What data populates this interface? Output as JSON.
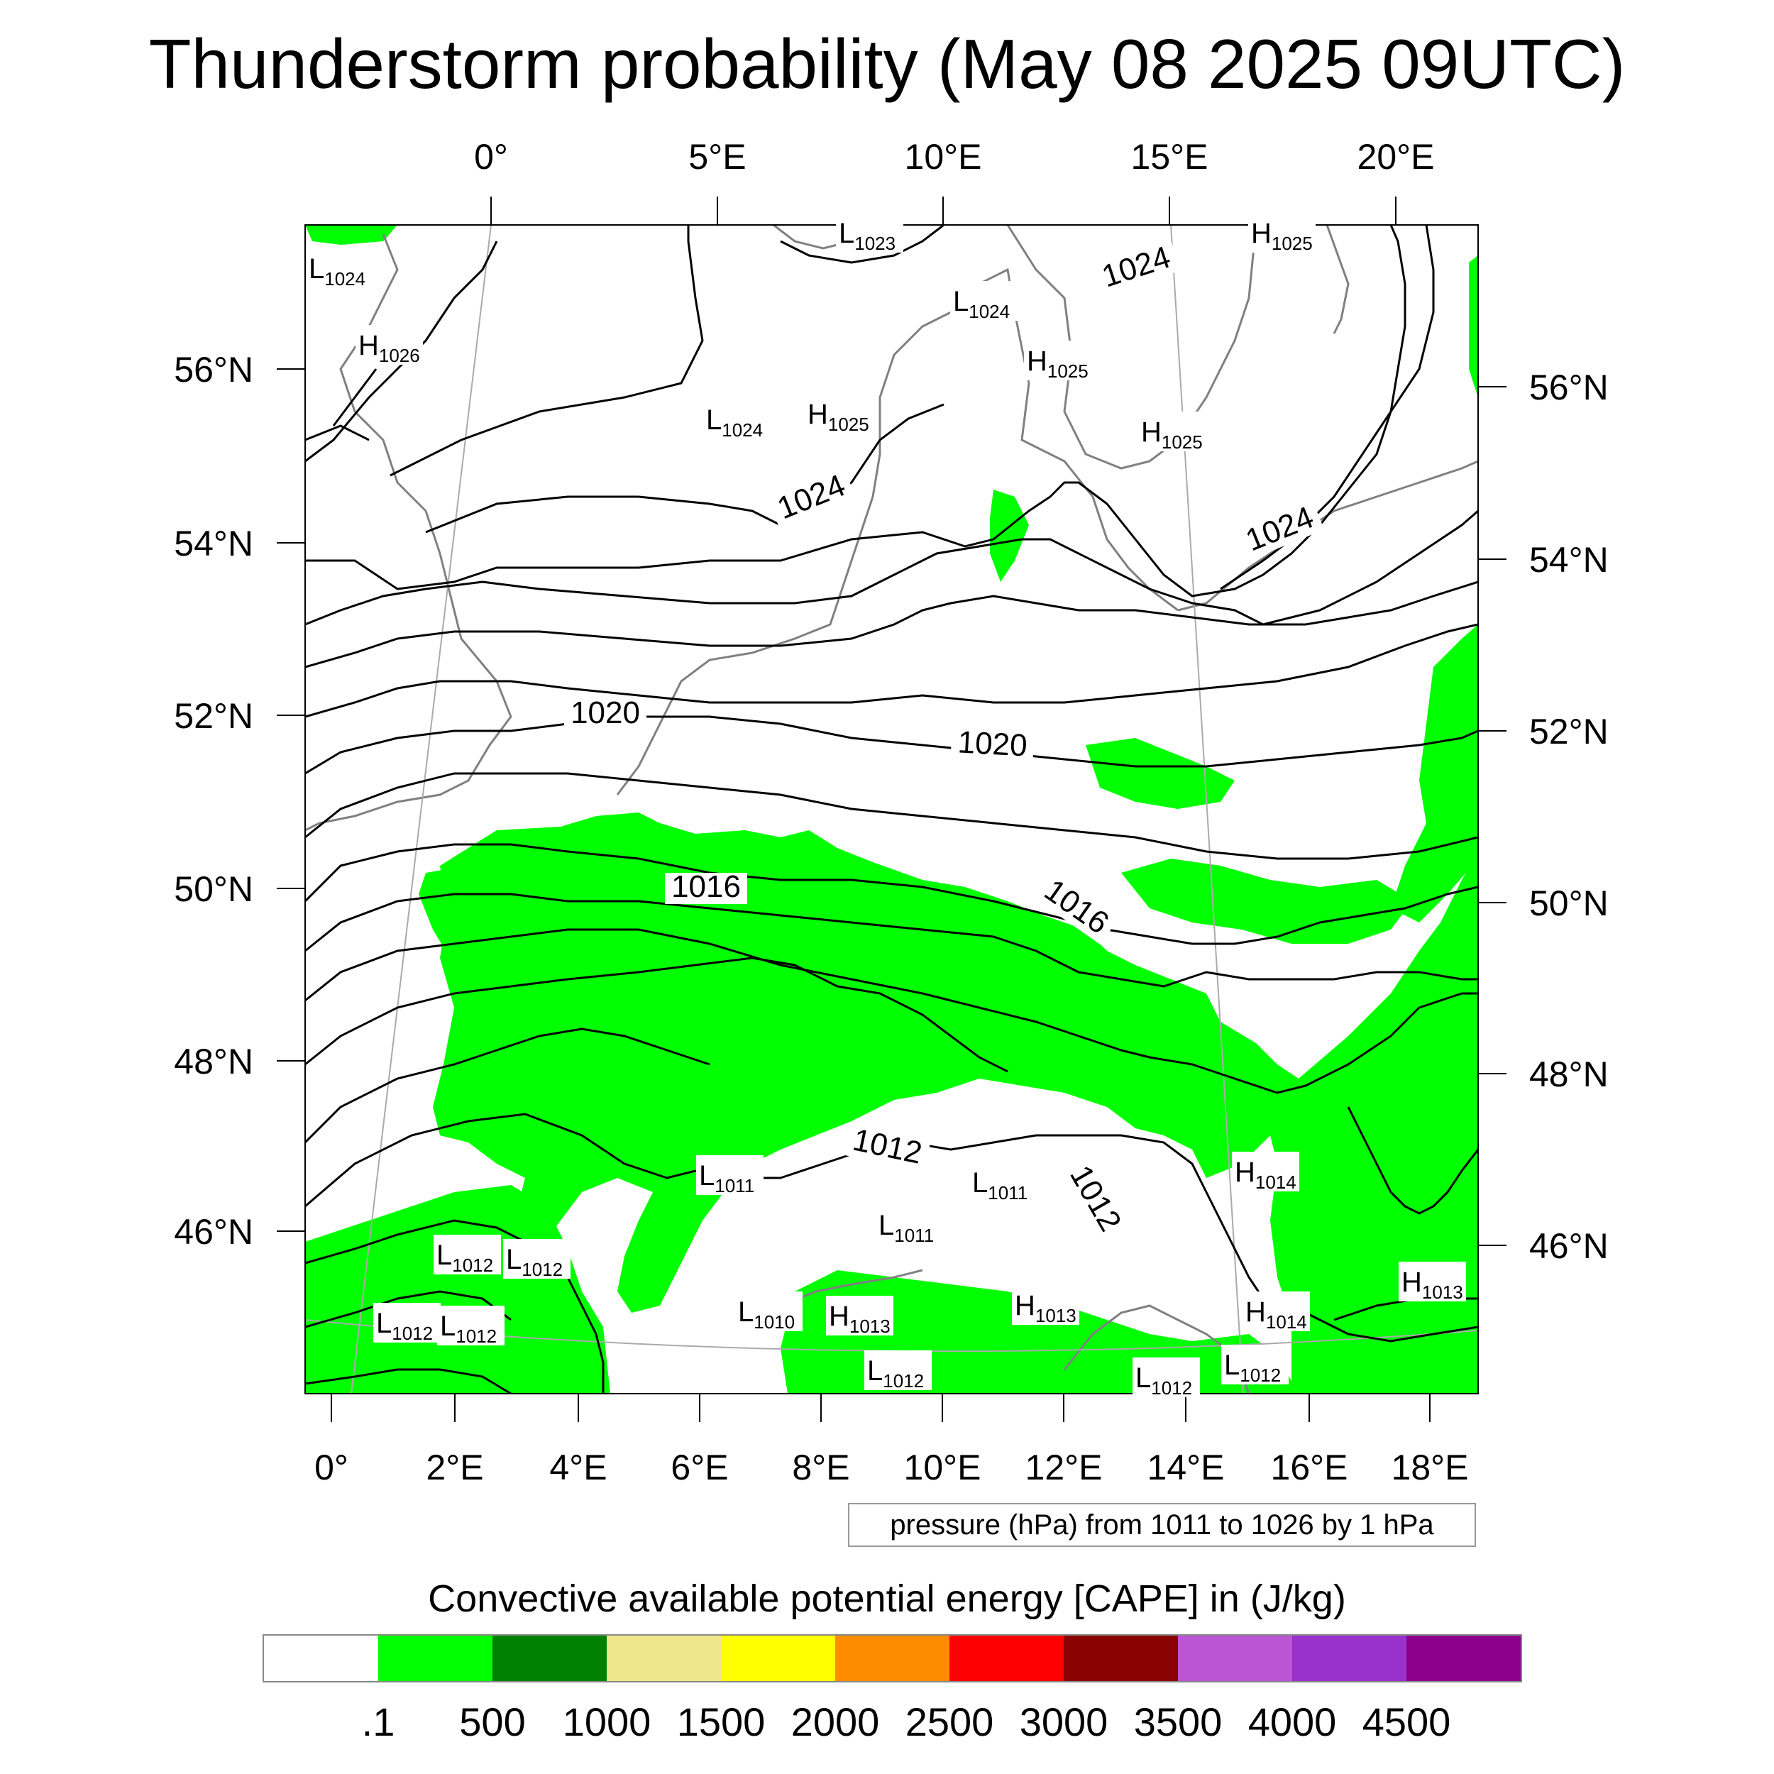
{
  "title": "Thunderstorm probability (May 08 2025 09UTC)",
  "top_lon_labels": [
    "0°",
    "5°E",
    "10°E",
    "15°E",
    "20°E"
  ],
  "left_lat_labels": [
    "56°N",
    "54°N",
    "52°N",
    "50°N",
    "48°N",
    "46°N"
  ],
  "right_lat_labels": [
    "56°N",
    "54°N",
    "52°N",
    "50°N",
    "48°N",
    "46°N"
  ],
  "bottom_lon_labels": [
    "0°",
    "2°E",
    "4°E",
    "6°E",
    "8°E",
    "10°E",
    "12°E",
    "14°E",
    "16°E",
    "18°E"
  ],
  "pressure_contour_labels": [
    "1024",
    "1024",
    "1024",
    "1020",
    "1020",
    "1016",
    "1016",
    "1012",
    "1012"
  ],
  "pressure_centers": [
    {
      "type": "L",
      "value": "1024"
    },
    {
      "type": "H",
      "value": "1026"
    },
    {
      "type": "L",
      "value": "1023"
    },
    {
      "type": "H",
      "value": "1025"
    },
    {
      "type": "L",
      "value": "1024"
    },
    {
      "type": "H",
      "value": "1025"
    },
    {
      "type": "L",
      "value": "1024"
    },
    {
      "type": "H",
      "value": "1025"
    },
    {
      "type": "H",
      "value": "1025"
    },
    {
      "type": "H",
      "value": "1014"
    },
    {
      "type": "L",
      "value": "1011"
    },
    {
      "type": "L",
      "value": "1011"
    },
    {
      "type": "L",
      "value": "1011"
    },
    {
      "type": "L",
      "value": "1012"
    },
    {
      "type": "L",
      "value": "1012"
    },
    {
      "type": "L",
      "value": "1012"
    },
    {
      "type": "L",
      "value": "1012"
    },
    {
      "type": "L",
      "value": "1010"
    },
    {
      "type": "H",
      "value": "1013"
    },
    {
      "type": "H",
      "value": "1013"
    },
    {
      "type": "H",
      "value": "1014"
    },
    {
      "type": "H",
      "value": "1013"
    },
    {
      "type": "L",
      "value": "1012"
    },
    {
      "type": "L",
      "value": "1012"
    },
    {
      "type": "L",
      "value": "1012"
    }
  ],
  "contour_note": "pressure (hPa) from 1011 to 1026 by 1 hPa",
  "colorbar": {
    "title": "Convective available potential energy [CAPE] in (J/kg)",
    "colors": [
      "#ffffff",
      "#00ff00",
      "#008000",
      "#f0e68c",
      "#ffff00",
      "#ff8c00",
      "#ff0000",
      "#8b0000",
      "#ba55d3",
      "#9932cc",
      "#8b008b"
    ],
    "tick_labels": [
      ".1",
      "500",
      "1000",
      "1500",
      "2000",
      "2500",
      "3000",
      "3500",
      "4000",
      "4500"
    ]
  }
}
